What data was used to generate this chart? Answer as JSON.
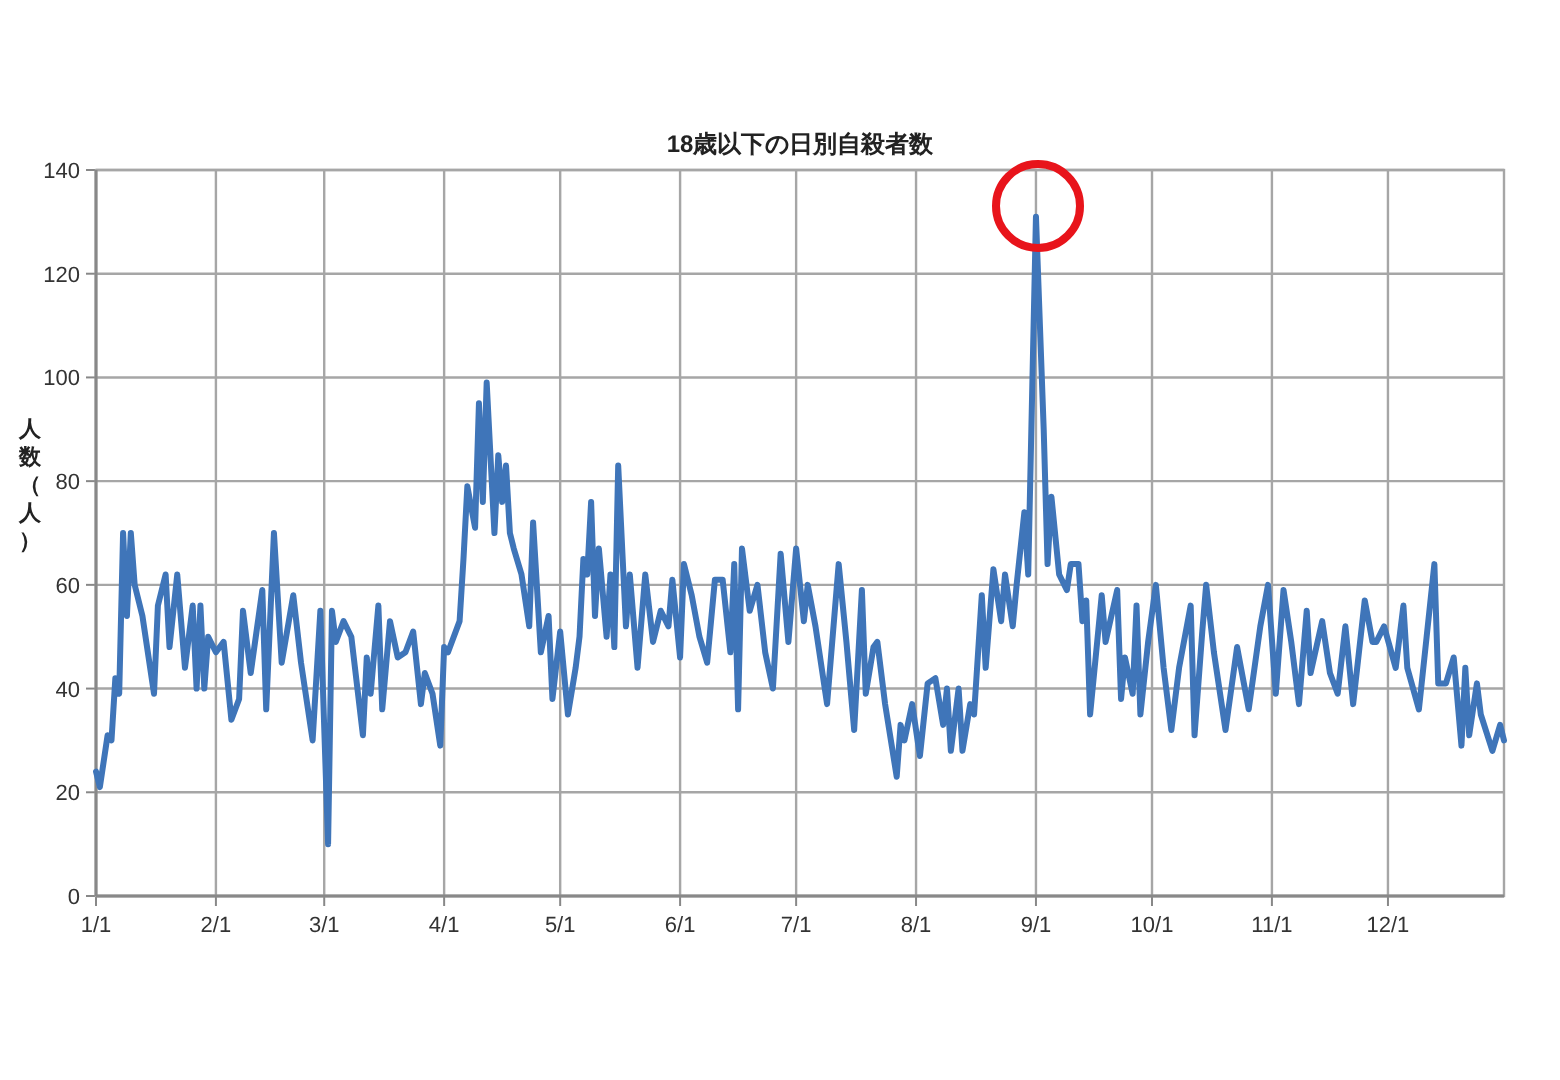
{
  "chart_data": {
    "type": "line",
    "title": "18歳以下の日別自殺者数",
    "ylabel": "人数（人）",
    "xlim": [
      "--01-01",
      "--12-31"
    ],
    "ylim": [
      0,
      140
    ],
    "yticks": [
      0,
      20,
      40,
      60,
      80,
      100,
      120,
      140
    ],
    "xticks": [
      {
        "value": "--01-01",
        "label": "1/1"
      },
      {
        "value": "--02-01",
        "label": "2/1"
      },
      {
        "value": "--03-01",
        "label": "3/1"
      },
      {
        "value": "--04-01",
        "label": "4/1"
      },
      {
        "value": "--05-01",
        "label": "5/1"
      },
      {
        "value": "--06-01",
        "label": "6/1"
      },
      {
        "value": "--07-01",
        "label": "7/1"
      },
      {
        "value": "--08-01",
        "label": "8/1"
      },
      {
        "value": "--09-01",
        "label": "9/1"
      },
      {
        "value": "--10-01",
        "label": "10/1"
      },
      {
        "value": "--11-01",
        "label": "11/1"
      },
      {
        "value": "--12-01",
        "label": "12/1"
      }
    ],
    "grid": true,
    "marker": "none",
    "line_style": "solid",
    "x": [
      "--01-01",
      "--01-02",
      "--01-04",
      "--01-05",
      "--01-06",
      "--01-07",
      "--01-08",
      "--01-09",
      "--01-10",
      "--01-11",
      "--01-13",
      "--01-16",
      "--01-17",
      "--01-19",
      "--01-20",
      "--01-22",
      "--01-24",
      "--01-26",
      "--01-27",
      "--01-28",
      "--01-29",
      "--01-30",
      "--02-01",
      "--02-03",
      "--02-05",
      "--02-07",
      "--02-08",
      "--02-10",
      "--02-13",
      "--02-14",
      "--02-16",
      "--02-18",
      "--02-21",
      "--02-23",
      "--02-26",
      "--02-28",
      "--03-02",
      "--03-03",
      "--03-04",
      "--03-06",
      "--03-08",
      "--03-11",
      "--03-12",
      "--03-13",
      "--03-15",
      "--03-16",
      "--03-18",
      "--03-20",
      "--03-22",
      "--03-24",
      "--03-26",
      "--03-27",
      "--03-29",
      "--03-31",
      "--04-01",
      "--04-02",
      "--04-05",
      "--04-06",
      "--04-07",
      "--04-09",
      "--04-10",
      "--04-11",
      "--04-12",
      "--04-14",
      "--04-15",
      "--04-16",
      "--04-17",
      "--04-18",
      "--04-19",
      "--04-21",
      "--04-23",
      "--04-24",
      "--04-26",
      "--04-28",
      "--04-29",
      "--05-01",
      "--05-03",
      "--05-05",
      "--05-06",
      "--05-07",
      "--05-08",
      "--05-09",
      "--05-10",
      "--05-11",
      "--05-13",
      "--05-14",
      "--05-15",
      "--05-16",
      "--05-18",
      "--05-19",
      "--05-21",
      "--05-23",
      "--05-25",
      "--05-27",
      "--05-29",
      "--05-30",
      "--06-01",
      "--06-02",
      "--06-04",
      "--06-06",
      "--06-08",
      "--06-10",
      "--06-12",
      "--06-14",
      "--06-15",
      "--06-16",
      "--06-17",
      "--06-19",
      "--06-21",
      "--06-23",
      "--06-25",
      "--06-27",
      "--06-29",
      "--07-01",
      "--07-03",
      "--07-04",
      "--07-06",
      "--07-09",
      "--07-12",
      "--07-14",
      "--07-16",
      "--07-18",
      "--07-19",
      "--07-21",
      "--07-22",
      "--07-24",
      "--07-27",
      "--07-28",
      "--07-29",
      "--07-31",
      "--08-02",
      "--08-04",
      "--08-06",
      "--08-08",
      "--08-09",
      "--08-10",
      "--08-12",
      "--08-13",
      "--08-15",
      "--08-16",
      "--08-18",
      "--08-19",
      "--08-21",
      "--08-23",
      "--08-24",
      "--08-26",
      "--08-27",
      "--08-29",
      "--08-30",
      "--09-01",
      "--09-03",
      "--09-04",
      "--09-05",
      "--09-07",
      "--09-09",
      "--09-10",
      "--09-12",
      "--09-13",
      "--09-14",
      "--09-15",
      "--09-18",
      "--09-19",
      "--09-22",
      "--09-23",
      "--09-24",
      "--09-26",
      "--09-27",
      "--09-28",
      "--09-30",
      "--10-02",
      "--10-04",
      "--10-06",
      "--10-08",
      "--10-11",
      "--10-12",
      "--10-14",
      "--10-15",
      "--10-17",
      "--10-20",
      "--10-23",
      "--10-26",
      "--10-29",
      "--10-31",
      "--11-02",
      "--11-04",
      "--11-06",
      "--11-08",
      "--11-10",
      "--11-11",
      "--11-14",
      "--11-16",
      "--11-18",
      "--11-20",
      "--11-22",
      "--11-25",
      "--11-27",
      "--11-28",
      "--11-30",
      "--12-03",
      "--12-05",
      "--12-06",
      "--12-09",
      "--12-11",
      "--12-13",
      "--12-14",
      "--12-16",
      "--12-18",
      "--12-20",
      "--12-21",
      "--12-22",
      "--12-24",
      "--12-25",
      "--12-28",
      "--12-30",
      "--12-31"
    ],
    "series": [
      {
        "color": "#3f75b9",
        "values": [
          24,
          21,
          31,
          30,
          42,
          39,
          70,
          54,
          70,
          60,
          54,
          39,
          56,
          62,
          48,
          62,
          44,
          56,
          40,
          56,
          40,
          50,
          47,
          49,
          34,
          38,
          55,
          43,
          59,
          36,
          70,
          45,
          58,
          45,
          30,
          55,
          10,
          55,
          49,
          53,
          50,
          31,
          46,
          39,
          56,
          36,
          53,
          46,
          47,
          51,
          37,
          43,
          39,
          29,
          48,
          47,
          53,
          65,
          79,
          71,
          95,
          76,
          99,
          70,
          85,
          76,
          83,
          70,
          67,
          62,
          52,
          72,
          47,
          54,
          38,
          51,
          35,
          44,
          50,
          65,
          62,
          76,
          54,
          67,
          50,
          62,
          48,
          83,
          52,
          62,
          44,
          62,
          49,
          55,
          52,
          61,
          46,
          64,
          58,
          50,
          45,
          61,
          61,
          47,
          64,
          36,
          67,
          55,
          60,
          47,
          40,
          66,
          49,
          67,
          53,
          60,
          52,
          37,
          64,
          49,
          32,
          59,
          39,
          48,
          49,
          37,
          23,
          33,
          30,
          37,
          27,
          41,
          42,
          33,
          40,
          28,
          40,
          28,
          37,
          35,
          58,
          44,
          63,
          53,
          62,
          52,
          60,
          74,
          62,
          131,
          90,
          64,
          77,
          62,
          59,
          64,
          64,
          53,
          57,
          35,
          58,
          49,
          59,
          38,
          46,
          39,
          56,
          35,
          49,
          60,
          44,
          32,
          44,
          56,
          31,
          51,
          60,
          47,
          32,
          48,
          36,
          52,
          60,
          39,
          59,
          49,
          37,
          55,
          43,
          53,
          43,
          39,
          52,
          37,
          57,
          49,
          49,
          52,
          44,
          56,
          44,
          36,
          50,
          64,
          41,
          41,
          46,
          29,
          44,
          31,
          41,
          35,
          28,
          33,
          30
        ]
      }
    ]
  }
}
